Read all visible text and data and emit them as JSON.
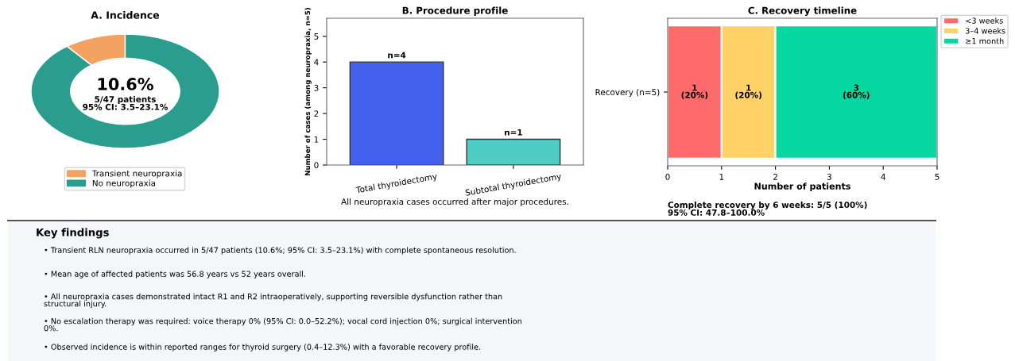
{
  "chart_data": [
    {
      "type": "donut",
      "title": "A. Incidence",
      "categories": [
        "Transient neuropraxia",
        "No neuropraxia"
      ],
      "values": [
        10.6,
        89.4
      ],
      "colors": [
        "#f4a261",
        "#2a9d8f"
      ],
      "legend": "bottom",
      "annotations": [
        "10.6%",
        "5/47 patients\n95% CI: 3.5–23.1%"
      ]
    },
    {
      "type": "bar",
      "title": "B. Procedure profile",
      "ylabel": "Number of cases (among neuropraxia, n=5)",
      "categories": [
        "Total thyroidectomy",
        "Subtotal thyroidectomy"
      ],
      "values": [
        4,
        1
      ],
      "colors": [
        "#4361ee",
        "#4ecdc4"
      ],
      "value_labels": [
        "n=4",
        "n=1"
      ],
      "ylim": [
        0,
        5.7
      ],
      "yticks": [
        0,
        1,
        2,
        3,
        4,
        5
      ],
      "annotations": [
        "All neuropraxia cases occurred after major procedures."
      ]
    },
    {
      "type": "bar",
      "title": "C. Recovery timeline",
      "xlabel": "Number of patients",
      "orientation": "horizontal",
      "stacked": true,
      "categories": [
        "Recovery (n=5)"
      ],
      "xlim": [
        0,
        5
      ],
      "xticks": [
        0,
        1,
        2,
        3,
        4,
        5
      ],
      "legend": "top right",
      "series": [
        {
          "name": "<3 weeks",
          "color": "#ff6b6b",
          "values": [
            1
          ],
          "value_labels": [
            "1\n(20%)"
          ]
        },
        {
          "name": "3–4 weeks",
          "color": "#ffd166",
          "values": [
            1
          ],
          "value_labels": [
            "1\n(20%)"
          ]
        },
        {
          "name": "≥1 month",
          "color": "#06d6a0",
          "values": [
            3
          ],
          "value_labels": [
            "3\n(60%)"
          ]
        }
      ],
      "annotations": [
        "Complete recovery by 6 weeks: 5/5 (100%)\n95% CI: 47.8–100.0%"
      ]
    },
    {
      "type": "other",
      "title": "Key findings",
      "annotations": [
        "• Transient RLN neuropraxia occurred in 5/47 patients (10.6%; 95% CI: 3.5–23.1%) with complete spontaneous resolution.",
        "• Mean age of affected patients was 56.8 years vs 52 years overall.",
        "• All neuropraxia cases demonstrated intact R1 and R2 intraoperatively, supporting reversible dysfunction rather than\nstructural injury.",
        "• No escalation therapy was required: voice therapy 0% (95% CI: 0.0–52.2%); vocal cord injection 0%; surgical intervention\n0%.",
        "• Observed incidence is within reported ranges for thyroid surgery (0.4–12.3%) with a favorable recovery profile."
      ]
    }
  ]
}
